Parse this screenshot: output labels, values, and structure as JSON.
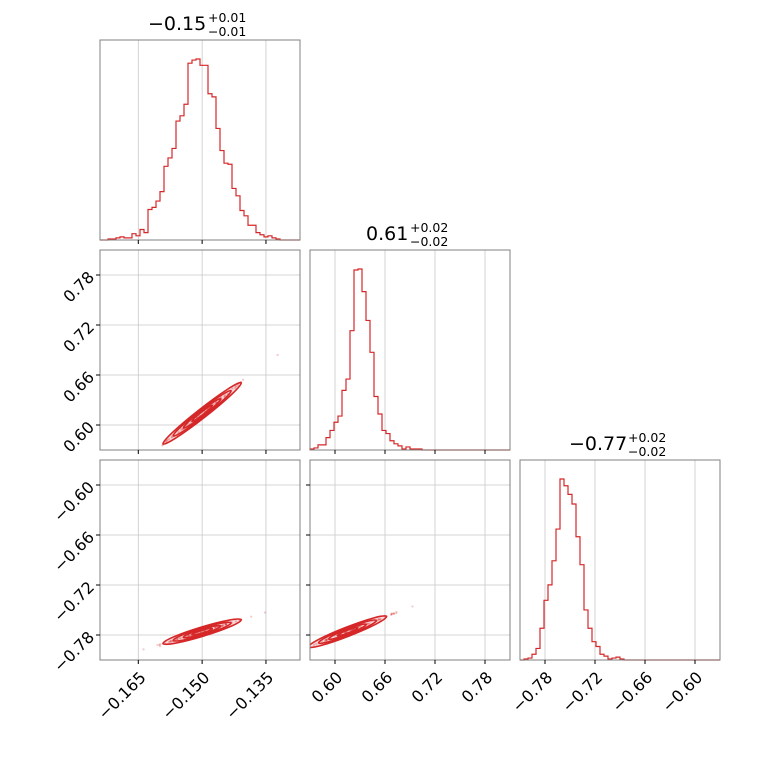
{
  "chart_data": {
    "type": "corner",
    "color": "#d62728",
    "grid": true,
    "parameters": [
      {
        "median_label": "−0.15",
        "plus_label": "+0.01",
        "minus_label": "−0.01",
        "range": [
          -0.174,
          -0.127
        ],
        "ticks": [
          -0.165,
          -0.15,
          -0.135
        ],
        "tick_labels": [
          "−0.165",
          "−0.150",
          "−0.135"
        ]
      },
      {
        "median_label": "0.61",
        "plus_label": "+0.02",
        "minus_label": "−0.02",
        "range": [
          0.57,
          0.81
        ],
        "ticks": [
          0.6,
          0.66,
          0.72,
          0.78
        ],
        "tick_labels": [
          "0.60",
          "0.66",
          "0.72",
          "0.78"
        ]
      },
      {
        "median_label": "−0.77",
        "plus_label": "+0.02",
        "minus_label": "−0.02",
        "range": [
          -0.81,
          -0.57
        ],
        "ticks": [
          -0.78,
          -0.72,
          -0.66,
          -0.6
        ],
        "tick_labels": [
          "−0.78",
          "−0.72",
          "−0.66",
          "−0.60"
        ]
      }
    ],
    "histograms": [
      {
        "bin_edges": [
          -0.174,
          -0.127
        ],
        "counts": [
          0,
          0,
          1,
          1,
          2,
          3,
          2,
          2,
          6,
          4,
          10,
          7,
          29,
          31,
          37,
          46,
          70,
          78,
          87,
          113,
          118,
          129,
          168,
          171,
          172,
          166,
          166,
          139,
          136,
          106,
          85,
          73,
          72,
          49,
          42,
          28,
          23,
          14,
          14,
          7,
          5,
          3,
          4,
          2,
          1,
          0,
          0,
          0,
          0,
          0
        ]
      },
      {
        "bin_edges": [
          0.57,
          0.81
        ],
        "counts": [
          1,
          2,
          5,
          5,
          12,
          19,
          27,
          33,
          58,
          69,
          116,
          175,
          176,
          154,
          126,
          95,
          52,
          35,
          19,
          16,
          9,
          6,
          4,
          1,
          3,
          1,
          1,
          1,
          0,
          0,
          0,
          0,
          0,
          0,
          0,
          0,
          0,
          0,
          0,
          0,
          0,
          0,
          0,
          0,
          0,
          0,
          0,
          0,
          0,
          0
        ]
      },
      {
        "bin_edges": [
          -0.81,
          -0.57
        ],
        "counts": [
          0,
          1,
          2,
          6,
          12,
          33,
          62,
          78,
          103,
          136,
          188,
          181,
          172,
          162,
          128,
          99,
          52,
          33,
          19,
          14,
          6,
          4,
          1,
          2,
          3,
          1,
          0,
          0,
          0,
          0,
          0,
          0,
          0,
          0,
          0,
          0,
          0,
          0,
          0,
          0,
          0,
          0,
          0,
          0,
          0,
          0,
          0,
          0,
          0,
          0
        ]
      }
    ],
    "pair_plots": [
      {
        "x_param": 0,
        "y_param": 1,
        "slope": 4.0,
        "x_center": -0.15,
        "y_center": 0.614
      },
      {
        "x_param": 0,
        "y_param": 2,
        "slope": 1.55,
        "x_center": -0.15,
        "y_center": -0.776
      },
      {
        "x_param": 1,
        "y_param": 2,
        "slope": 0.39,
        "x_center": 0.615,
        "y_center": -0.776
      }
    ]
  }
}
